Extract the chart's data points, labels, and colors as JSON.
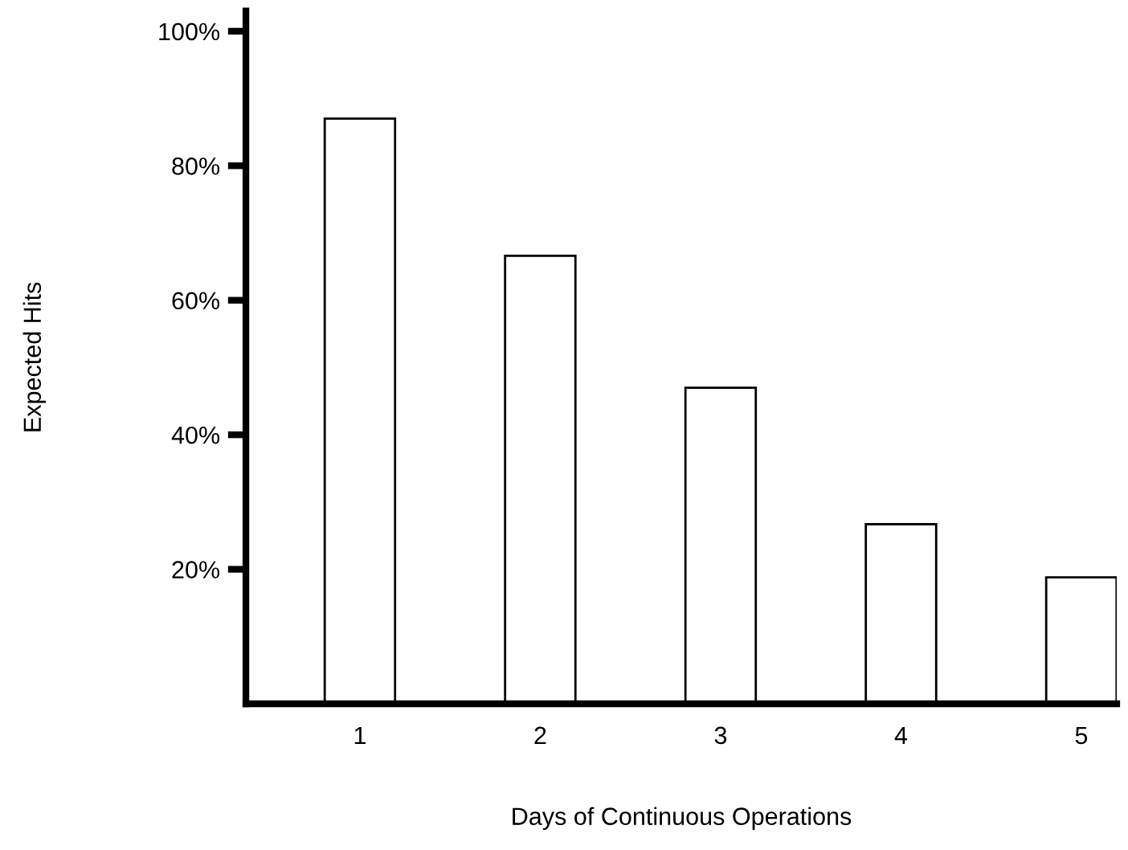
{
  "chart_data": {
    "type": "bar",
    "xlabel": "Days of Continuous Operations",
    "ylabel": "Expected Hits",
    "categories": [
      "1",
      "2",
      "3",
      "4",
      "5"
    ],
    "values": [
      87,
      66.6,
      47,
      26.7,
      18.8
    ],
    "color": "#ffffff",
    "ylim": [
      0,
      103
    ],
    "yticks": [
      {
        "value": 20,
        "label": "20%"
      },
      {
        "value": 40,
        "label": "40%"
      },
      {
        "value": 60,
        "label": "60%"
      },
      {
        "value": 80,
        "label": "80%"
      },
      {
        "value": 100,
        "label": "100%"
      }
    ],
    "grid": false,
    "legend": false
  }
}
